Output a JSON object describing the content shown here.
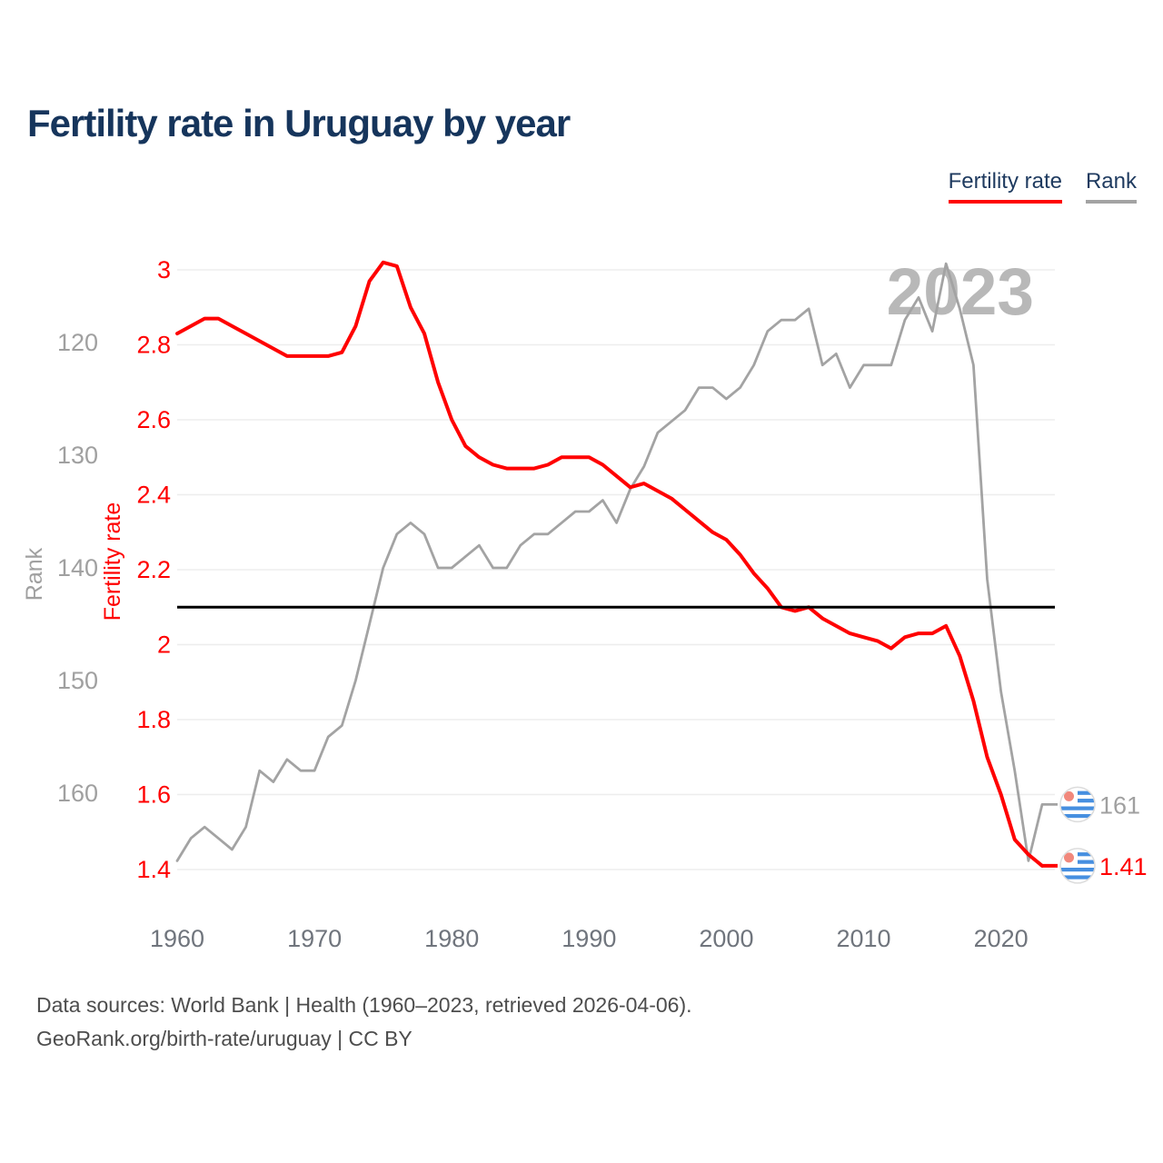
{
  "title": "Fertility rate in Uruguay by year",
  "legend": {
    "items": [
      {
        "label": "Fertility rate",
        "color": "#ff0000"
      },
      {
        "label": "Rank",
        "color": "#a3a3a3"
      }
    ]
  },
  "watermark": "2023",
  "footer": {
    "line1": "Data sources: World Bank | Health (1960–2023, retrieved 2026-04-06).",
    "line2": "GeoRank.org/birth-rate/uruguay | CC BY"
  },
  "colors": {
    "fertility": "#ff0000",
    "rank": "#a3a3a3",
    "reference_line": "#000000",
    "gridline": "#ededed",
    "x_tick": "#70757d",
    "rank_tick": "#a0a0a0",
    "watermark": "#b8b8b8",
    "flag_blue": "#468fe0",
    "flag_sun": "#f1887c"
  },
  "chart_data": {
    "type": "line",
    "title": "Fertility rate in Uruguay by year",
    "x_label": "",
    "x": [
      1960,
      1961,
      1962,
      1963,
      1964,
      1965,
      1966,
      1967,
      1968,
      1969,
      1970,
      1971,
      1972,
      1973,
      1974,
      1975,
      1976,
      1977,
      1978,
      1979,
      1980,
      1981,
      1982,
      1983,
      1984,
      1985,
      1986,
      1987,
      1988,
      1989,
      1990,
      1991,
      1992,
      1993,
      1994,
      1995,
      1996,
      1997,
      1998,
      1999,
      2000,
      2001,
      2002,
      2003,
      2004,
      2005,
      2006,
      2007,
      2008,
      2009,
      2010,
      2011,
      2012,
      2013,
      2014,
      2015,
      2016,
      2017,
      2018,
      2019,
      2020,
      2021,
      2022,
      2023
    ],
    "series": [
      {
        "name": "Fertility rate",
        "axis": "fertility",
        "end_label": "1.41",
        "values": [
          2.83,
          2.85,
          2.87,
          2.87,
          2.85,
          2.83,
          2.81,
          2.79,
          2.77,
          2.77,
          2.77,
          2.77,
          2.78,
          2.85,
          2.97,
          3.02,
          3.01,
          2.9,
          2.83,
          2.7,
          2.6,
          2.53,
          2.5,
          2.48,
          2.47,
          2.47,
          2.47,
          2.48,
          2.5,
          2.5,
          2.5,
          2.48,
          2.45,
          2.42,
          2.43,
          2.41,
          2.39,
          2.36,
          2.33,
          2.3,
          2.28,
          2.24,
          2.19,
          2.15,
          2.1,
          2.09,
          2.1,
          2.07,
          2.05,
          2.03,
          2.02,
          2.01,
          1.99,
          2.02,
          2.03,
          2.03,
          2.05,
          1.97,
          1.85,
          1.7,
          1.6,
          1.48,
          1.44,
          1.41
        ]
      },
      {
        "name": "Rank",
        "axis": "rank",
        "end_label": "161",
        "values": [
          166,
          164,
          163,
          164,
          165,
          163,
          158,
          159,
          157,
          158,
          158,
          155,
          154,
          150,
          145,
          140,
          137,
          136,
          137,
          140,
          140,
          139,
          138,
          140,
          140,
          138,
          137,
          137,
          136,
          135,
          135,
          134,
          136,
          133,
          131,
          128,
          127,
          126,
          124,
          124,
          125,
          124,
          122,
          119,
          118,
          118,
          117,
          122,
          121,
          124,
          122,
          122,
          122,
          118,
          116,
          119,
          113,
          117,
          122,
          141,
          151,
          158,
          166,
          161
        ]
      }
    ],
    "fertility_axis": {
      "label": "Fertility rate",
      "ticks": [
        3,
        2.8,
        2.6,
        2.4,
        2.2,
        2,
        1.8,
        1.6,
        1.4
      ],
      "range": [
        1.4,
        3.02
      ]
    },
    "rank_axis": {
      "label": "Rank",
      "ticks": [
        120,
        130,
        140,
        150,
        160
      ],
      "inverted": true
    },
    "x_axis": {
      "ticks": [
        1960,
        1970,
        1980,
        1990,
        2000,
        2010,
        2020
      ],
      "range": [
        1960,
        2023
      ]
    },
    "reference_line": {
      "axis": "fertility",
      "value": 2.1
    },
    "grid": "horizontal",
    "legend_position": "top-right"
  }
}
